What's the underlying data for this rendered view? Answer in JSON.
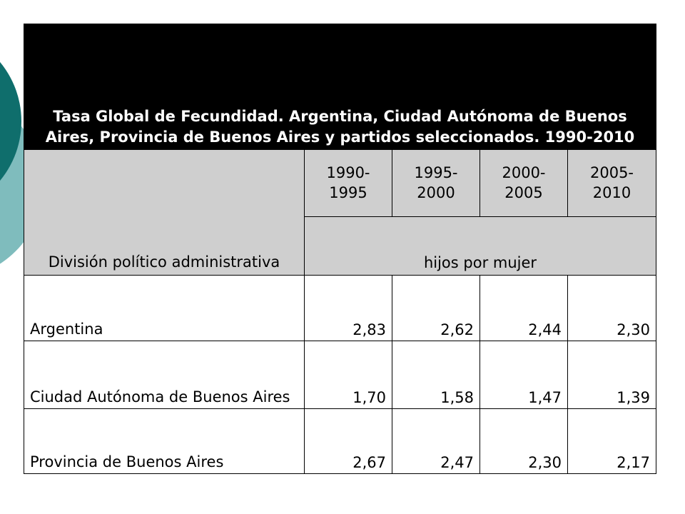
{
  "title": "Tasa Global de Fecundidad. Argentina, Ciudad Autónoma de Buenos Aires, Provincia de Buenos Aires y partidos seleccionados. 1990-2010",
  "header": {
    "division_label": "División político administrativa",
    "periods": [
      "1990- 1995",
      "1995- 2000",
      "2000- 2005",
      "2005- 2010"
    ],
    "unit": "hijos por mujer"
  },
  "rows": [
    {
      "label": "Argentina",
      "values": [
        "2,83",
        "2,62",
        "2,44",
        "2,30"
      ]
    },
    {
      "label": "Ciudad Autónoma de Buenos Aires",
      "values": [
        "1,70",
        "1,58",
        "1,47",
        "1,39"
      ]
    },
    {
      "label": "Provincia de Buenos Aires",
      "values": [
        "2,67",
        "2,47",
        "2,30",
        "2,17"
      ]
    }
  ],
  "colors": {
    "title_bg": "#000000",
    "header_bg": "#cfcfcf",
    "deco_teal_dark": "#0f6e6c",
    "deco_teal_light": "#7fbcbd"
  }
}
